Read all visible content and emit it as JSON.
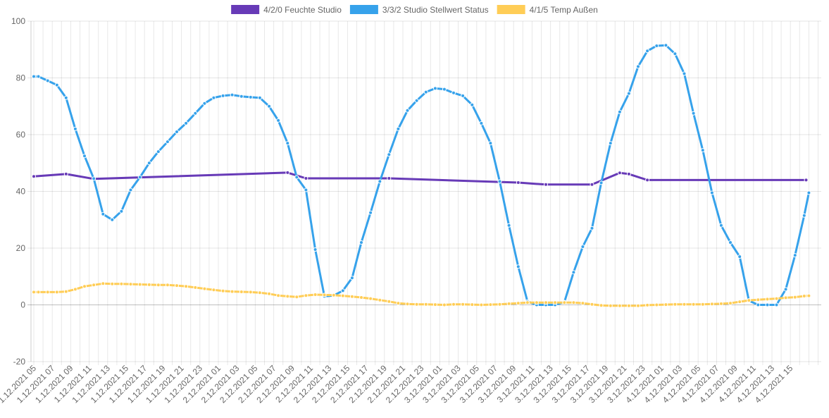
{
  "chart_data": {
    "type": "line",
    "ylim": [
      -20,
      100
    ],
    "y_ticks": [
      "-20",
      "0",
      "20",
      "40",
      "60",
      "80",
      "100"
    ],
    "grid": true,
    "legend_position": "top",
    "x_labels": [
      "1.12.2021 05",
      "1.12.2021 07",
      "1.12.2021 09",
      "1.12.2021 11",
      "1.12.2021 13",
      "1.12.2021 15",
      "1.12.2021 17",
      "1.12.2021 19",
      "1.12.2021 21",
      "1.12.2021 23",
      "2.12.2021 01",
      "2.12.2021 03",
      "2.12.2021 05",
      "2.12.2021 07",
      "2.12.2021 09",
      "2.12.2021 11",
      "2.12.2021 13",
      "2.12.2021 15",
      "2.12.2021 17",
      "2.12.2021 19",
      "2.12.2021 21",
      "2.12.2021 23",
      "3.12.2021 01",
      "3.12.2021 03",
      "3.12.2021 05",
      "3.12.2021 07",
      "3.12.2021 09",
      "3.12.2021 11",
      "3.12.2021 13",
      "3.12.2021 15",
      "3.12.2021 17",
      "3.12.2021 19",
      "3.12.2021 21",
      "3.12.2021 23",
      "4.12.2021 01",
      "4.12.2021 03",
      "4.12.2021 05",
      "4.12.2021 07",
      "4.12.2021 09",
      "4.12.2021 11",
      "4.12.2021 13",
      "4.12.2021 15"
    ],
    "series": [
      {
        "name": "4/2/0 Feuchte Studio",
        "color": "#673ab7",
        "points": [
          [
            0,
            45.3
          ],
          [
            3.5,
            46.1
          ],
          [
            6.5,
            44.4
          ],
          [
            27.5,
            46.6
          ],
          [
            29.5,
            44.6
          ],
          [
            38.5,
            44.6
          ],
          [
            52.5,
            43.1
          ],
          [
            55.5,
            42.4
          ],
          [
            60.5,
            42.4
          ],
          [
            63.5,
            46.5
          ],
          [
            64.5,
            46.1
          ],
          [
            66.5,
            44.0
          ],
          [
            83.7,
            44.0
          ]
        ]
      },
      {
        "name": "3/3/2 Studio Stellwert Status",
        "color": "#36a2eb",
        "points": [
          [
            0,
            80.5
          ],
          [
            0.5,
            80.5
          ],
          [
            1.5,
            79
          ],
          [
            2.5,
            77.5
          ],
          [
            3.5,
            73
          ],
          [
            4.5,
            62
          ],
          [
            5.5,
            52.5
          ],
          [
            6.5,
            44.5
          ],
          [
            7.5,
            32
          ],
          [
            8.5,
            30
          ],
          [
            9.5,
            33
          ],
          [
            10.5,
            40.5
          ],
          [
            11.5,
            45
          ],
          [
            12.5,
            50
          ],
          [
            13.5,
            54
          ],
          [
            14.5,
            57.5
          ],
          [
            15.5,
            61
          ],
          [
            16.5,
            64
          ],
          [
            17.5,
            67.5
          ],
          [
            18.5,
            71
          ],
          [
            19.5,
            73
          ],
          [
            20.5,
            73.7
          ],
          [
            21.5,
            74
          ],
          [
            22.5,
            73.5
          ],
          [
            23.5,
            73.2
          ],
          [
            24.5,
            73
          ],
          [
            25.5,
            70
          ],
          [
            26.5,
            65
          ],
          [
            27.5,
            57
          ],
          [
            28.5,
            45
          ],
          [
            29.5,
            40.5
          ],
          [
            30.5,
            19.5
          ],
          [
            31.5,
            3
          ],
          [
            32.5,
            3.3
          ],
          [
            33.5,
            5
          ],
          [
            34.5,
            9.5
          ],
          [
            35.5,
            22
          ],
          [
            36.5,
            32.5
          ],
          [
            37.5,
            43.5
          ],
          [
            38.5,
            53
          ],
          [
            39.5,
            62
          ],
          [
            40.5,
            68.5
          ],
          [
            41.5,
            72
          ],
          [
            42.5,
            75
          ],
          [
            43.5,
            76.3
          ],
          [
            44.5,
            76
          ],
          [
            45.5,
            74.7
          ],
          [
            46.5,
            73.7
          ],
          [
            47.5,
            70.5
          ],
          [
            48.5,
            64
          ],
          [
            49.5,
            57
          ],
          [
            50.5,
            43.5
          ],
          [
            51.5,
            28
          ],
          [
            52.5,
            13.5
          ],
          [
            53.5,
            1.2
          ],
          [
            54.5,
            0
          ],
          [
            55.5,
            0
          ],
          [
            56.5,
            0
          ],
          [
            57.5,
            1
          ],
          [
            58.5,
            11.5
          ],
          [
            59.5,
            20.5
          ],
          [
            60.5,
            27
          ],
          [
            61.5,
            43
          ],
          [
            62.5,
            57
          ],
          [
            63.5,
            68
          ],
          [
            64.5,
            74.5
          ],
          [
            65.5,
            84
          ],
          [
            66.5,
            89.5
          ],
          [
            67.5,
            91.3
          ],
          [
            68.5,
            91.5
          ],
          [
            69.5,
            88.5
          ],
          [
            70.5,
            81.5
          ],
          [
            71.5,
            67.5
          ],
          [
            72.5,
            54.5
          ],
          [
            73.5,
            39.5
          ],
          [
            74.5,
            28
          ],
          [
            75.5,
            22
          ],
          [
            76.5,
            17
          ],
          [
            77.5,
            1.5
          ],
          [
            78.5,
            0
          ],
          [
            79.5,
            0
          ],
          [
            80.5,
            0
          ],
          [
            81.5,
            5.5
          ],
          [
            82.5,
            17.5
          ],
          [
            83.5,
            31.5
          ],
          [
            84.0,
            39.5
          ]
        ]
      },
      {
        "name": "4/1/5 Temp Außen",
        "color": "#ffcd56",
        "points": [
          [
            0,
            4.5
          ],
          [
            0.5,
            4.5
          ],
          [
            1.5,
            4.5
          ],
          [
            2.5,
            4.5
          ],
          [
            3.5,
            4.7
          ],
          [
            4.5,
            5.5
          ],
          [
            5.5,
            6.5
          ],
          [
            6.5,
            7
          ],
          [
            7.5,
            7.5
          ],
          [
            8.5,
            7.4
          ],
          [
            9.5,
            7.4
          ],
          [
            10.5,
            7.3
          ],
          [
            11.5,
            7.2
          ],
          [
            12.5,
            7.1
          ],
          [
            13.5,
            7.0
          ],
          [
            14.5,
            7.0
          ],
          [
            15.5,
            6.8
          ],
          [
            16.5,
            6.5
          ],
          [
            17.5,
            6.1
          ],
          [
            18.5,
            5.7
          ],
          [
            19.5,
            5.3
          ],
          [
            20.5,
            4.9
          ],
          [
            21.5,
            4.7
          ],
          [
            22.5,
            4.6
          ],
          [
            23.5,
            4.5
          ],
          [
            24.5,
            4.3
          ],
          [
            25.5,
            3.9
          ],
          [
            26.5,
            3.3
          ],
          [
            27.5,
            3.0
          ],
          [
            28.5,
            2.8
          ],
          [
            29.5,
            3.3
          ],
          [
            30.5,
            3.6
          ],
          [
            31.5,
            3.5
          ],
          [
            32.5,
            3.4
          ],
          [
            33.5,
            3.2
          ],
          [
            34.5,
            2.9
          ],
          [
            35.5,
            2.6
          ],
          [
            36.5,
            2.2
          ],
          [
            37.5,
            1.7
          ],
          [
            38.5,
            1.2
          ],
          [
            39.5,
            0.6
          ],
          [
            40.5,
            0.3
          ],
          [
            41.5,
            0.2
          ],
          [
            42.5,
            0.2
          ],
          [
            43.5,
            0.1
          ],
          [
            44.5,
            0.0
          ],
          [
            45.5,
            0.2
          ],
          [
            46.5,
            0.2
          ],
          [
            47.5,
            0.1
          ],
          [
            48.5,
            0.0
          ],
          [
            49.5,
            0.1
          ],
          [
            50.5,
            0.2
          ],
          [
            51.5,
            0.4
          ],
          [
            52.5,
            0.6
          ],
          [
            53.5,
            0.8
          ],
          [
            54.5,
            0.8
          ],
          [
            55.5,
            0.8
          ],
          [
            56.5,
            0.8
          ],
          [
            57.5,
            0.8
          ],
          [
            58.5,
            0.8
          ],
          [
            59.5,
            0.6
          ],
          [
            60.5,
            0.2
          ],
          [
            61.5,
            -0.2
          ],
          [
            62.5,
            -0.3
          ],
          [
            63.5,
            -0.3
          ],
          [
            64.5,
            -0.3
          ],
          [
            65.5,
            -0.3
          ],
          [
            66.5,
            -0.1
          ],
          [
            67.5,
            0.0
          ],
          [
            68.5,
            0.1
          ],
          [
            69.5,
            0.2
          ],
          [
            70.5,
            0.2
          ],
          [
            71.5,
            0.2
          ],
          [
            72.5,
            0.2
          ],
          [
            73.5,
            0.3
          ],
          [
            74.5,
            0.4
          ],
          [
            75.5,
            0.6
          ],
          [
            76.5,
            1.1
          ],
          [
            77.5,
            1.6
          ],
          [
            78.5,
            1.8
          ],
          [
            79.5,
            2.0
          ],
          [
            80.5,
            2.2
          ],
          [
            81.5,
            2.5
          ],
          [
            82.5,
            2.7
          ],
          [
            83.5,
            3.1
          ],
          [
            84.0,
            3.2
          ]
        ]
      }
    ]
  }
}
